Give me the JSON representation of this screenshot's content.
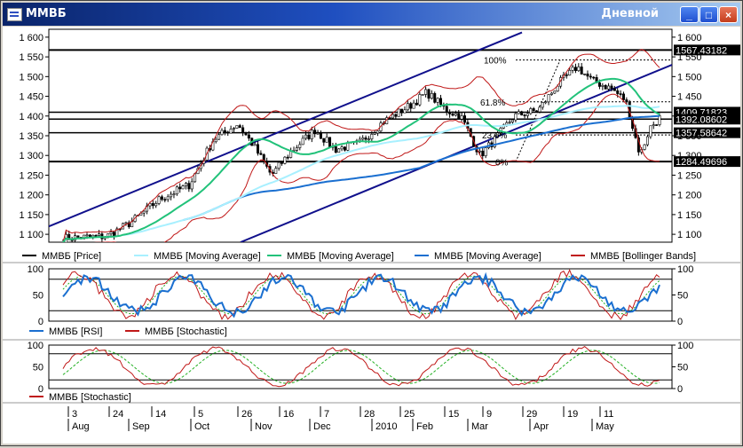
{
  "window": {
    "title": "ММВБ",
    "period": "Дневной",
    "btn_min": "_",
    "btn_max": "□",
    "btn_close": "×"
  },
  "colors": {
    "price": "#000000",
    "ma_fast": "#22c27a",
    "ma_mid": "#a8f0ff",
    "ma_slow": "#1a6fd0",
    "bollinger": "#c01818",
    "channel": "#10108c",
    "rsi": "#1a6fd0",
    "stoch_k": "#c01818",
    "stoch_d": "#22b022"
  },
  "chart_data": [
    {
      "type": "candlestick",
      "title": "ММВБ",
      "ylim": [
        1080,
        1620
      ],
      "y_ticks": [
        "1 600",
        "1 550",
        "1 500",
        "1 450",
        "1 400",
        "1 350",
        "1 300",
        "1 250",
        "1 200",
        "1 150",
        "1 100"
      ],
      "y_tick_values": [
        1600,
        1550,
        1500,
        1450,
        1400,
        1350,
        1300,
        1250,
        1200,
        1150,
        1100
      ],
      "legend": [
        {
          "name": "ММВБ [Price]",
          "color_key": "price"
        },
        {
          "name": "ММВБ [Moving Average]",
          "color_key": "ma_mid"
        },
        {
          "name": "ММВБ [Moving Average]",
          "color_key": "ma_fast"
        },
        {
          "name": "ММВБ [Moving Average]",
          "color_key": "ma_slow"
        },
        {
          "name": "ММВБ [Bollinger Bands]",
          "color_key": "bollinger"
        }
      ],
      "price_labels": [
        "1567.43182",
        "1409.71823",
        "1392.08602",
        "1357.58642",
        "1284.49696"
      ],
      "price_label_values": [
        1567.43182,
        1409.71823,
        1392.08602,
        1357.58642,
        1284.49696
      ],
      "fibonacci_labels": [
        "100%",
        "61.8%",
        "23.6%",
        "0%"
      ],
      "fibonacci_values": [
        1542,
        1436,
        1352,
        1284
      ]
    },
    {
      "type": "line",
      "ylim": [
        0,
        100
      ],
      "y_ticks": [
        "100",
        "50",
        "0"
      ],
      "y_tick_values": [
        100,
        50,
        0
      ],
      "series": [
        {
          "name": "ММВБ [RSI]",
          "color_key": "rsi"
        },
        {
          "name": "ММВБ [Stochastic]",
          "color_key": "stoch_k"
        }
      ]
    },
    {
      "type": "line",
      "ylim": [
        0,
        100
      ],
      "y_ticks": [
        "100",
        "50",
        "0"
      ],
      "y_tick_values": [
        100,
        50,
        0
      ],
      "series": [
        {
          "name": "ММВБ [Stochastic]",
          "color_key": "stoch_k"
        }
      ]
    }
  ],
  "x_axis": {
    "days": [
      "3",
      "24",
      "14",
      "5",
      "26",
      "16",
      "7",
      "28",
      "25",
      "15",
      "9",
      "29",
      "19",
      "11"
    ],
    "months": [
      "Aug",
      "Sep",
      "Oct",
      "Nov",
      "Dec",
      "2010",
      "Feb",
      "Mar",
      "Apr",
      "May"
    ]
  }
}
